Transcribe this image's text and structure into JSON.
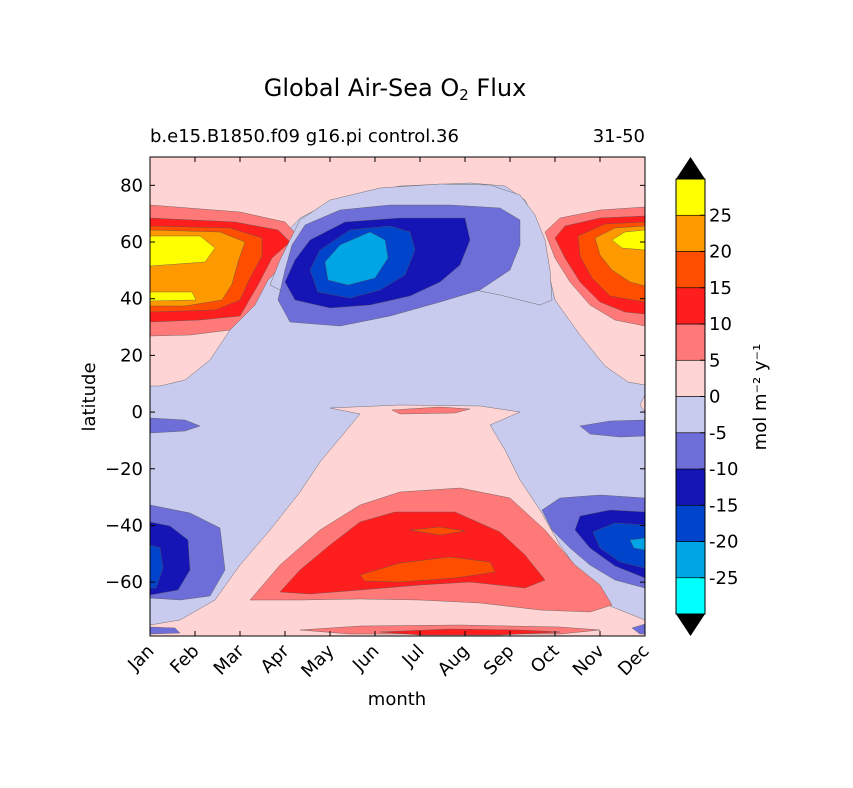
{
  "chart_data": {
    "type": "heatmap",
    "title": "Global Air-Sea O",
    "title_subscript": "2",
    "title_suffix": " Flux",
    "subtitle_left": "b.e15.B1850.f09 g16.pi control.36",
    "subtitle_right": "31-50",
    "xlabel": "month",
    "ylabel": "latitude",
    "x_ticks": [
      "Jan",
      "Feb",
      "Mar",
      "Apr",
      "May",
      "Jun",
      "Jul",
      "Aug",
      "Sep",
      "Oct",
      "Nov",
      "Dec"
    ],
    "y_ticks": [
      80,
      60,
      40,
      20,
      0,
      -20,
      -40,
      -60
    ],
    "ylim": [
      -79,
      90
    ],
    "xlim": [
      1,
      12
    ],
    "colorbar": {
      "label": "mol m⁻² y⁻¹",
      "levels": [
        -30,
        -25,
        -20,
        -15,
        -10,
        -5,
        0,
        5,
        10,
        15,
        20,
        25,
        30
      ],
      "tick_labels": [
        "-25",
        "-20",
        "-15",
        "-10",
        "-5",
        "0",
        "5",
        "10",
        "15",
        "20",
        "25"
      ],
      "colors": [
        "#00ffff",
        "#00a5e5",
        "#0044cc",
        "#1515b5",
        "#6e6ed8",
        "#c9cbee",
        "#ffd4d4",
        "#ff7979",
        "#ff1e1e",
        "#ff4e00",
        "#ff9900",
        "#ffff00"
      ],
      "extend_min_color": "#000000",
      "extend_max_color": "#000000"
    },
    "background_level": "-5 to 0",
    "regions": [
      {
        "name": "winter-north-positive",
        "months": "Jan-Mar, Oct-Dec",
        "lat": [
          32,
          72
        ],
        "peak": 25
      },
      {
        "name": "summer-north-negative",
        "months": "May-Sep",
        "lat": [
          32,
          80
        ],
        "peak": -25
      },
      {
        "name": "southern-ocean-positive",
        "months": "Apr-Oct",
        "lat": [
          -75,
          -28
        ],
        "peak": 20
      },
      {
        "name": "southern-ocean-negative-winter",
        "months": "Jan-Feb, Oct-Dec",
        "lat": [
          -68,
          -32
        ],
        "peak": -20
      },
      {
        "name": "equatorial-positive",
        "months": "Jun-Sep",
        "lat": [
          -1,
          1
        ],
        "peak": 10
      }
    ]
  }
}
